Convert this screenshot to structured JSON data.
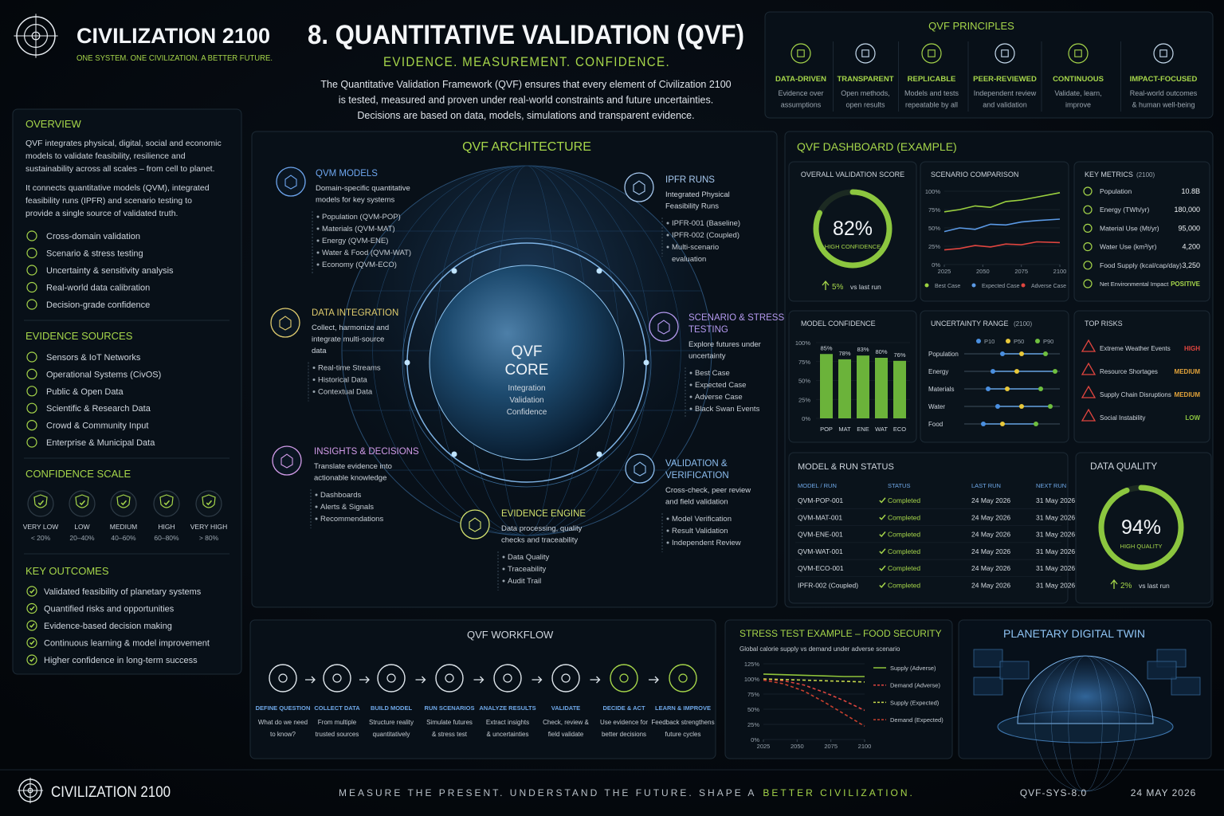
{
  "header": {
    "brand": "CIVILIZATION 2100",
    "tagline": "ONE SYSTEM. ONE CIVILIZATION. A BETTER FUTURE.",
    "title": "8. QUANTITATIVE VALIDATION (QVF)",
    "subtitle": "EVIDENCE. MEASUREMENT. CONFIDENCE.",
    "intro": [
      "The Quantitative Validation Framework (QVF) ensures that every element of Civilization 2100",
      "is tested, measured and proven under real-world constraints and future uncertainties.",
      "Decisions are based on data, models, simulations and transparent evidence."
    ]
  },
  "principles": {
    "title": "QVF PRINCIPLES",
    "items": [
      {
        "name": "DATA-DRIVEN",
        "desc": [
          "Evidence over",
          "assumptions"
        ]
      },
      {
        "name": "TRANSPARENT",
        "desc": [
          "Open methods,",
          "open results"
        ]
      },
      {
        "name": "REPLICABLE",
        "desc": [
          "Models and tests",
          "repeatable by all"
        ]
      },
      {
        "name": "PEER-REVIEWED",
        "desc": [
          "Independent review",
          "and validation"
        ]
      },
      {
        "name": "CONTINUOUS",
        "desc": [
          "Validate, learn,",
          "improve"
        ]
      },
      {
        "name": "IMPACT-FOCUSED",
        "desc": [
          "Real-world outcomes",
          "& human well-being"
        ]
      }
    ]
  },
  "overview": {
    "title": "OVERVIEW",
    "paragraphs": [
      [
        "QVF integrates physical, digital, social and economic",
        "models to validate feasibility, resilience and",
        "sustainability across all scales – from cell to planet."
      ],
      [
        "It connects quantitative models (QVM), integrated",
        "feasibility runs (IPFR) and scenario testing to",
        "provide a single source of validated truth."
      ]
    ],
    "items": [
      "Cross-domain validation",
      "Scenario & stress testing",
      "Uncertainty & sensitivity analysis",
      "Real-world data calibration",
      "Decision-grade confidence"
    ]
  },
  "evidence_sources": {
    "title": "EVIDENCE SOURCES",
    "items": [
      "Sensors & IoT Networks",
      "Operational Systems (CivOS)",
      "Public & Open Data",
      "Scientific & Research Data",
      "Crowd & Community Input",
      "Enterprise & Municipal Data"
    ]
  },
  "confidence_scale": {
    "title": "CONFIDENCE SCALE",
    "levels": [
      {
        "name": "VERY LOW",
        "range": "< 20%"
      },
      {
        "name": "LOW",
        "range": "20–40%"
      },
      {
        "name": "MEDIUM",
        "range": "40–60%"
      },
      {
        "name": "HIGH",
        "range": "60–80%"
      },
      {
        "name": "VERY HIGH",
        "range": "> 80%"
      }
    ]
  },
  "key_outcomes": {
    "title": "KEY OUTCOMES",
    "items": [
      "Validated feasibility of planetary systems",
      "Quantified risks and opportunities",
      "Evidence-based decision making",
      "Continuous learning & model improvement",
      "Higher confidence in long-term success"
    ]
  },
  "architecture": {
    "title": "QVF ARCHITECTURE",
    "core": {
      "title": [
        "QVF",
        "CORE"
      ],
      "lines": [
        "Integration",
        "Validation",
        "Confidence"
      ]
    },
    "modules": [
      {
        "title": [
          "QVM MODELS"
        ],
        "desc": [
          "Domain-specific quantitative",
          "models for key systems"
        ],
        "items": [
          "Population (QVM-POP)",
          "Materials (QVM-MAT)",
          "Energy (QVM-ENE)",
          "Water & Food (QVM-WAT)",
          "Economy (QVM-ECO)"
        ]
      },
      {
        "title": [
          "IPFR RUNS"
        ],
        "desc": [
          "Integrated Physical",
          "Feasibility Runs"
        ],
        "items": [
          "IPFR-001 (Baseline)",
          "IPFR-002 (Coupled)",
          [
            "Multi-scenario",
            "evaluation"
          ]
        ]
      },
      {
        "title": [
          "DATA INTEGRATION"
        ],
        "desc": [
          "Collect, harmonize and",
          "integrate multi-source",
          "data"
        ],
        "items": [
          "Real-time Streams",
          "Historical Data",
          "Contextual Data"
        ]
      },
      {
        "title": [
          "SCENARIO & STRESS",
          "TESTING"
        ],
        "desc": [
          "Explore futures under",
          "uncertainty"
        ],
        "items": [
          "Best Case",
          "Expected Case",
          "Adverse Case",
          "Black Swan Events"
        ]
      },
      {
        "title": [
          "INSIGHTS & DECISIONS"
        ],
        "desc": [
          "Translate evidence into",
          "actionable knowledge"
        ],
        "items": [
          "Dashboards",
          "Alerts & Signals",
          "Recommendations"
        ]
      },
      {
        "title": [
          "VALIDATION &",
          "VERIFICATION"
        ],
        "desc": [
          "Cross-check, peer review",
          "and field validation"
        ],
        "items": [
          "Model Verification",
          "Result Validation",
          "Independent Review"
        ]
      },
      {
        "title": [
          "EVIDENCE ENGINE"
        ],
        "desc": [
          "Data processing, quality",
          "checks and traceability"
        ],
        "items": [
          "Data Quality",
          "Traceability",
          "Audit Trail"
        ]
      }
    ]
  },
  "dashboard": {
    "title": "QVF DASHBOARD (EXAMPLE)",
    "validation_score": {
      "title": "OVERALL VALIDATION SCORE",
      "value": 82,
      "lim": [
        0,
        100
      ],
      "label": "82%",
      "caption": "HIGH CONFIDENCE",
      "change": "5%",
      "change_note": "vs last run"
    },
    "scenario_comparison": {
      "type": "line",
      "title": "SCENARIO COMPARISON",
      "x": [
        2025,
        2035,
        2045,
        2055,
        2065,
        2075,
        2085,
        2100
      ],
      "series": [
        {
          "name": "Best Case",
          "color": "#9bd13f",
          "values": [
            72,
            75,
            80,
            78,
            86,
            88,
            92,
            98
          ]
        },
        {
          "name": "Expected Case",
          "color": "#5b9ae6",
          "values": [
            45,
            50,
            48,
            55,
            54,
            58,
            60,
            62
          ]
        },
        {
          "name": "Adverse Case",
          "color": "#e0453f",
          "values": [
            20,
            22,
            26,
            24,
            28,
            27,
            31,
            30
          ]
        }
      ],
      "xlim": [
        2025,
        2100
      ],
      "xticks": [
        2025,
        2050,
        2075,
        2100
      ],
      "ylim": [
        0,
        100
      ],
      "yticks": [
        {
          "value": 0,
          "label": "0%"
        },
        {
          "value": 25,
          "label": "25%"
        },
        {
          "value": 50,
          "label": "50%"
        },
        {
          "value": 75,
          "label": "75%"
        },
        {
          "value": 100,
          "label": "100%"
        }
      ],
      "grid": true
    },
    "key_metrics": {
      "title": "KEY METRICS",
      "title_note": "(2100)",
      "rows": [
        {
          "name": "Population",
          "value": "10.8B"
        },
        {
          "name": "Energy (TWh/yr)",
          "value": "180,000"
        },
        {
          "name": "Material Use (Mt/yr)",
          "value": "95,000"
        },
        {
          "name": "Water Use (km³/yr)",
          "value": "4,200"
        },
        {
          "name": "Food Supply (kcal/cap/day)",
          "value": "3,250"
        },
        {
          "name": "Net Environmental Impact",
          "value": "POSITIVE"
        }
      ]
    },
    "model_confidence": {
      "type": "bar",
      "title": "MODEL CONFIDENCE",
      "categories": [
        "POP",
        "MAT",
        "ENE",
        "WAT",
        "ECO"
      ],
      "values": [
        85,
        78,
        83,
        80,
        76
      ],
      "value_labels": [
        "85%",
        "78%",
        "83%",
        "80%",
        "76%"
      ],
      "color": "#6bb33a",
      "ylim": [
        0,
        100
      ],
      "yticks": [
        {
          "value": 0,
          "label": "0%"
        },
        {
          "value": 25,
          "label": "25%"
        },
        {
          "value": 50,
          "label": "50%"
        },
        {
          "value": 75,
          "label": "75%"
        },
        {
          "value": 100,
          "label": "100%"
        }
      ]
    },
    "uncertainty": {
      "type": "range",
      "title": "UNCERTAINTY RANGE",
      "title_note": "(2100)",
      "categories": [
        "Population",
        "Energy",
        "Materials",
        "Water",
        "Food"
      ],
      "series": [
        {
          "name": "P10",
          "color": "#4a8fe0",
          "values": [
            40,
            30,
            25,
            35,
            20
          ]
        },
        {
          "name": "P50",
          "color": "#e8c83a",
          "values": [
            60,
            55,
            45,
            60,
            40
          ]
        },
        {
          "name": "P90",
          "color": "#6fbf3f",
          "values": [
            85,
            95,
            80,
            90,
            75
          ]
        }
      ],
      "xlim": [
        0,
        100
      ]
    },
    "top_risks": {
      "title": "TOP RISKS",
      "rows": [
        {
          "name": "Extreme Weather Events",
          "level": "HIGH"
        },
        {
          "name": "Resource Shortages",
          "level": "MEDIUM"
        },
        {
          "name": "Supply Chain Disruptions",
          "level": "MEDIUM"
        },
        {
          "name": "Social Instability",
          "level": "LOW"
        }
      ]
    },
    "run_status": {
      "title": "MODEL & RUN STATUS",
      "columns": [
        "MODEL / RUN",
        "STATUS",
        "LAST RUN",
        "NEXT RUN"
      ],
      "rows": [
        [
          "QVM-POP-001",
          "Completed",
          "24 May 2026",
          "31 May 2026"
        ],
        [
          "QVM-MAT-001",
          "Completed",
          "24 May 2026",
          "31 May 2026"
        ],
        [
          "QVM-ENE-001",
          "Completed",
          "24 May 2026",
          "31 May 2026"
        ],
        [
          "QVM-WAT-001",
          "Completed",
          "24 May 2026",
          "31 May 2026"
        ],
        [
          "QVM-ECO-001",
          "Completed",
          "24 May 2026",
          "31 May 2026"
        ],
        [
          "IPFR-002 (Coupled)",
          "Completed",
          "24 May 2026",
          "31 May 2026"
        ]
      ]
    },
    "data_quality": {
      "title": "DATA QUALITY",
      "value": 94,
      "lim": [
        0,
        100
      ],
      "label": "94%",
      "caption": "HIGH QUALITY",
      "change": "2%",
      "change_note": "vs last run"
    }
  },
  "workflow": {
    "title": "QVF WORKFLOW",
    "steps": [
      {
        "name": "DEFINE QUESTION",
        "desc": [
          "What do we need",
          "to know?"
        ]
      },
      {
        "name": "COLLECT DATA",
        "desc": [
          "From multiple",
          "trusted sources"
        ]
      },
      {
        "name": "BUILD MODEL",
        "desc": [
          "Structure reality",
          "quantitatively"
        ]
      },
      {
        "name": "RUN SCENARIOS",
        "desc": [
          "Simulate futures",
          "& stress test"
        ]
      },
      {
        "name": "ANALYZE RESULTS",
        "desc": [
          "Extract insights",
          "& uncertainties"
        ]
      },
      {
        "name": "VALIDATE",
        "desc": [
          "Check, review &",
          "field validate"
        ]
      },
      {
        "name": "DECIDE & ACT",
        "desc": [
          "Use evidence for",
          "better decisions"
        ]
      },
      {
        "name": "LEARN & IMPROVE",
        "desc": [
          "Feedback strengthens",
          "future cycles"
        ]
      }
    ]
  },
  "stress_test": {
    "type": "line",
    "title": "STRESS TEST EXAMPLE – FOOD SECURITY",
    "subtitle": "Global calorie supply vs demand under adverse scenario",
    "x": [
      2025,
      2040,
      2055,
      2070,
      2085,
      2100
    ],
    "series": [
      {
        "name": "Supply (Adverse)",
        "color": "#8fc43a",
        "dashed": false,
        "values": [
          108,
          107,
          106,
          105,
          104,
          104
        ]
      },
      {
        "name": "Demand (Adverse)",
        "color": "#e0453f",
        "dashed": true,
        "values": [
          100,
          97,
          90,
          78,
          64,
          48
        ]
      },
      {
        "name": "Supply (Expected)",
        "color": "#c6d94a",
        "dashed": true,
        "values": [
          100,
          99,
          98,
          97,
          96,
          95
        ]
      },
      {
        "name": "Demand (Expected)",
        "color": "#c8402e",
        "dashed": true,
        "values": [
          98,
          92,
          80,
          62,
          42,
          22
        ]
      }
    ],
    "xlim": [
      2025,
      2100
    ],
    "xticks": [
      2025,
      2050,
      2075,
      2100
    ],
    "ylim": [
      0,
      125
    ],
    "yticks": [
      {
        "value": 0,
        "label": "0%"
      },
      {
        "value": 25,
        "label": "25%"
      },
      {
        "value": 50,
        "label": "50%"
      },
      {
        "value": 75,
        "label": "75%"
      },
      {
        "value": 100,
        "label": "100%"
      },
      {
        "value": 125,
        "label": "125%"
      }
    ],
    "grid": true
  },
  "digital_twin": {
    "title": "PLANETARY DIGITAL TWIN"
  },
  "footer": {
    "brand": "CIVILIZATION 2100",
    "slogan": "MEASURE THE PRESENT. UNDERSTAND THE FUTURE. SHAPE A",
    "slogan_highlight": "BETTER CIVILIZATION.",
    "code": "QVF-SYS-8.0",
    "date": "24 MAY 2026"
  }
}
